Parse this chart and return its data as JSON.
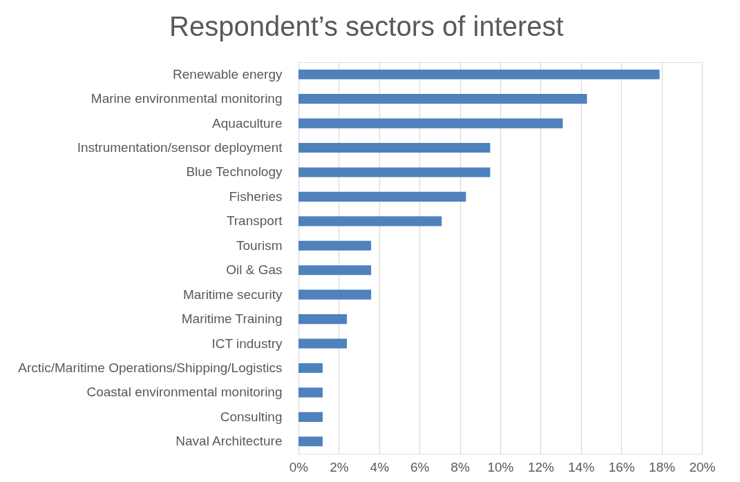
{
  "chart_data": {
    "type": "bar",
    "orientation": "horizontal",
    "title": "Respondent’s sectors of interest",
    "categories": [
      "Renewable energy",
      "Marine environmental monitoring",
      "Aquaculture",
      "Instrumentation/sensor deployment",
      "Blue Technology",
      "Fisheries",
      "Transport",
      "Tourism",
      "Oil & Gas",
      "Maritime security",
      "Maritime Training",
      "ICT industry",
      "Arctic/Maritime Operations/Shipping/Logistics",
      "Coastal environmental monitoring",
      "Consulting",
      "Naval Architecture"
    ],
    "values": [
      17.9,
      14.3,
      13.1,
      9.5,
      9.5,
      8.3,
      7.1,
      3.6,
      3.6,
      3.6,
      2.4,
      2.4,
      1.2,
      1.2,
      1.2,
      1.2
    ],
    "color": "#4f81bd",
    "xlim": [
      0,
      20
    ],
    "xticks": [
      {
        "value": 0,
        "label": "0%"
      },
      {
        "value": 2,
        "label": "2%"
      },
      {
        "value": 4,
        "label": "4%"
      },
      {
        "value": 6,
        "label": "6%"
      },
      {
        "value": 8,
        "label": "8%"
      },
      {
        "value": 10,
        "label": "10%"
      },
      {
        "value": 12,
        "label": "12%"
      },
      {
        "value": 14,
        "label": "14%"
      },
      {
        "value": 16,
        "label": "16%"
      },
      {
        "value": 18,
        "label": "18%"
      },
      {
        "value": 20,
        "label": "20%"
      }
    ],
    "grid": "x"
  }
}
